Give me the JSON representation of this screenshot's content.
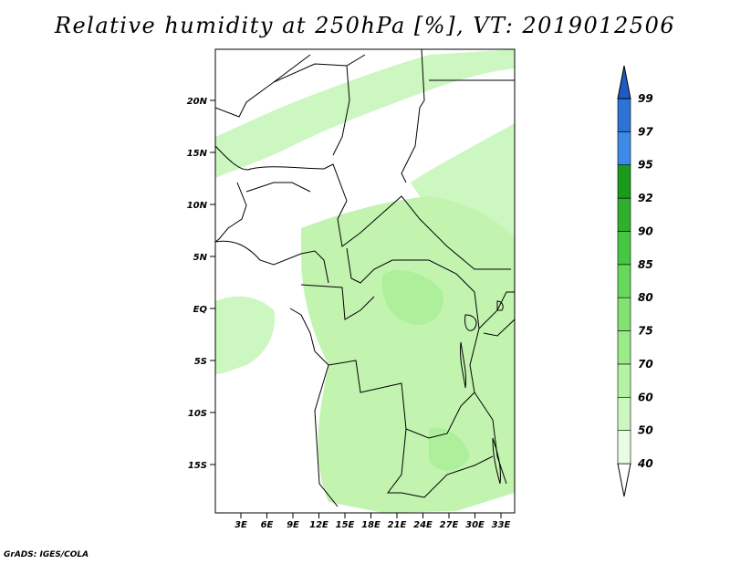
{
  "title": "Relative humidity at 250hPa [%], VT: 2019012506",
  "credit": "GrADS: IGES/COLA",
  "map": {
    "lat_labels": [
      "20N",
      "15N",
      "10N",
      "5N",
      "EQ",
      "5S",
      "10S",
      "15S"
    ],
    "lon_labels": [
      "3E",
      "6E",
      "9E",
      "12E",
      "15E",
      "18E",
      "21E",
      "24E",
      "27E",
      "30E",
      "33E"
    ]
  },
  "colorbar": {
    "levels": [
      "40",
      "50",
      "60",
      "70",
      "75",
      "80",
      "85",
      "90",
      "92",
      "95",
      "97",
      "99"
    ],
    "colors": [
      "#e9fbe2",
      "#cdf7c0",
      "#b4f3a3",
      "#9ceb8a",
      "#84e273",
      "#66d85c",
      "#46c742",
      "#2fb02c",
      "#1a9a1b",
      "#3d8be6",
      "#2d72d5",
      "#1e5cc4"
    ],
    "under_color": "#ffffff",
    "land_shading": "#c2f4b0"
  }
}
